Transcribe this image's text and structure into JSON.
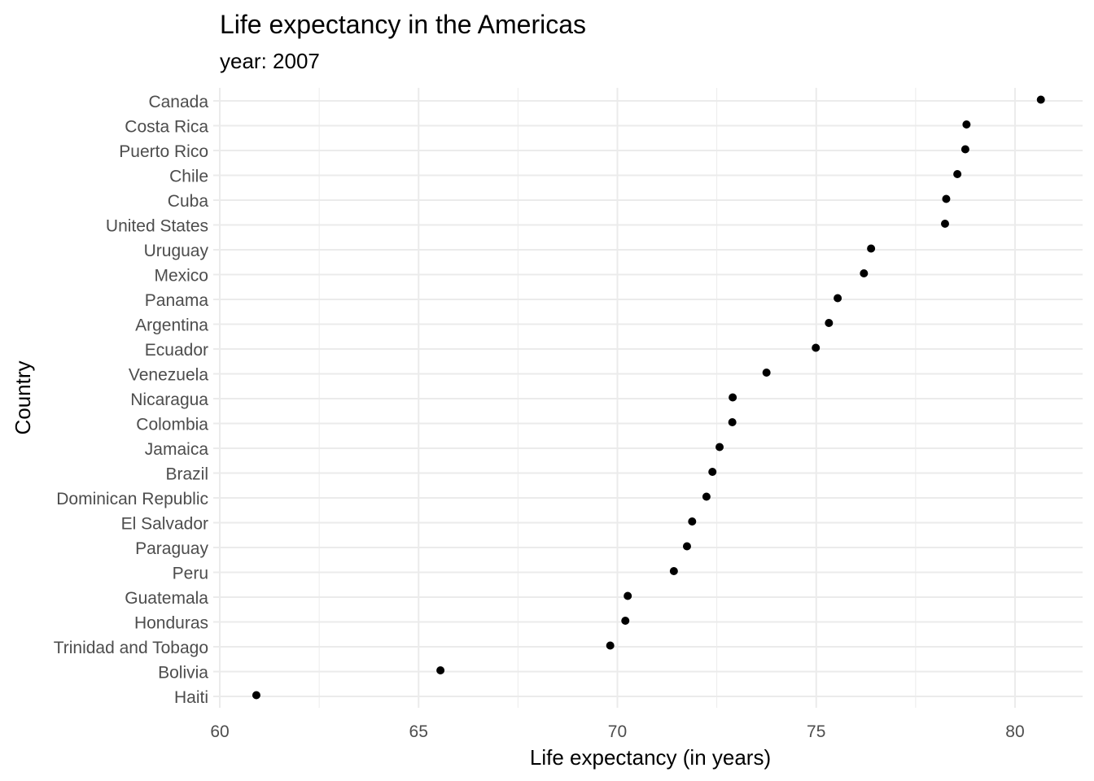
{
  "chart_data": {
    "type": "scatter",
    "title": "Life expectancy in the Americas",
    "subtitle": "year: 2007",
    "xlabel": "Life expectancy (in years)",
    "ylabel": "Country",
    "xlim": [
      60,
      81.7
    ],
    "xticks": [
      60,
      65,
      70,
      75,
      80
    ],
    "xtick_labels": [
      "60",
      "65",
      "70",
      "75",
      "80"
    ],
    "grid": true,
    "legend": "none",
    "point_color": "#000000",
    "categories": [
      "Canada",
      "Costa Rica",
      "Puerto Rico",
      "Chile",
      "Cuba",
      "United States",
      "Uruguay",
      "Mexico",
      "Panama",
      "Argentina",
      "Ecuador",
      "Venezuela",
      "Nicaragua",
      "Colombia",
      "Jamaica",
      "Brazil",
      "Dominican Republic",
      "El Salvador",
      "Paraguay",
      "Peru",
      "Guatemala",
      "Honduras",
      "Trinidad and Tobago",
      "Bolivia",
      "Haiti"
    ],
    "values": [
      80.65,
      78.78,
      78.75,
      78.55,
      78.27,
      78.24,
      76.38,
      76.2,
      75.54,
      75.32,
      74.99,
      73.75,
      72.9,
      72.89,
      72.57,
      72.39,
      72.24,
      71.88,
      71.75,
      71.42,
      70.26,
      70.2,
      69.82,
      65.55,
      60.92
    ]
  }
}
